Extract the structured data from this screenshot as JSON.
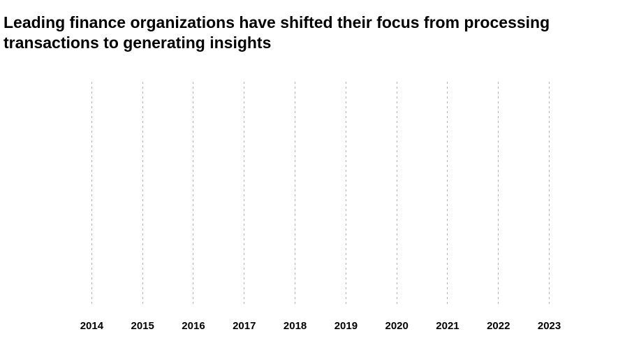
{
  "page": {
    "background_color": "#ffffff"
  },
  "header": {
    "title_line1": "Leading finance organizations have shifted their focus from processing",
    "title_line2": "transactions to generating insights",
    "title_color": "#000000"
  },
  "chart_data": {
    "type": "line",
    "title": "Leading finance organizations have shifted their focus from processing transactions to generating insights",
    "categories": [
      "2014",
      "2015",
      "2016",
      "2017",
      "2018",
      "2019",
      "2020",
      "2021",
      "2022",
      "2023"
    ],
    "series": [],
    "xlabel": "",
    "ylabel": "",
    "grid": "vertical dashed gridlines only; no axis lines, no y-axis ticks, no data series rendered",
    "legend": "none",
    "gridline_color": "#b4b4b4",
    "tick_label_color": "#000000"
  }
}
